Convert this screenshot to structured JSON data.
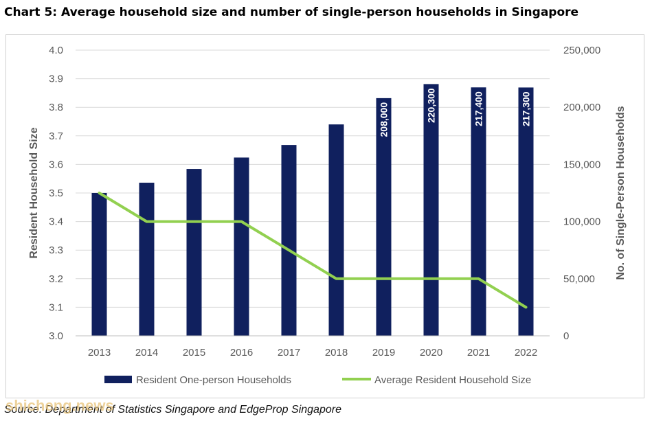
{
  "title": "Chart 5: Average household size and number of single-person households in Singapore",
  "source": "Source: Department of Statistics Singapore and EdgeProp Singapore",
  "watermark": "shicheng.news",
  "chart_data": {
    "type": "bar",
    "categories": [
      "2013",
      "2014",
      "2015",
      "2016",
      "2017",
      "2018",
      "2019",
      "2020",
      "2021",
      "2022"
    ],
    "series": [
      {
        "name": "Resident One-person Households",
        "type": "bar",
        "axis": "right",
        "color": "#10205e",
        "values": [
          125000,
          134000,
          146000,
          156000,
          167000,
          185000,
          208000,
          220300,
          217400,
          217300
        ],
        "labels": [
          "",
          "",
          "",
          "",
          "",
          "",
          "208,000",
          "220,300",
          "217,400",
          "217,300"
        ]
      },
      {
        "name": "Average Resident Household Size",
        "type": "line",
        "axis": "left",
        "color": "#92d050",
        "values": [
          3.5,
          3.4,
          3.4,
          3.4,
          3.3,
          3.2,
          3.2,
          3.2,
          3.2,
          3.1
        ]
      }
    ],
    "y_left": {
      "label": "Resident Household Size",
      "min": 3.0,
      "max": 4.0,
      "step": 0.1,
      "tick_labels": [
        "3.0",
        "3.1",
        "3.2",
        "3.3",
        "3.4",
        "3.5",
        "3.6",
        "3.7",
        "3.8",
        "3.9",
        "4.0"
      ]
    },
    "y_right": {
      "label": "No. of Single-Person Households",
      "min": 0,
      "max": 250000,
      "step": 50000,
      "tick_labels": [
        "0",
        "50,000",
        "100,000",
        "150,000",
        "200,000",
        "250,000"
      ]
    },
    "grid": true,
    "legend_position": "bottom"
  }
}
